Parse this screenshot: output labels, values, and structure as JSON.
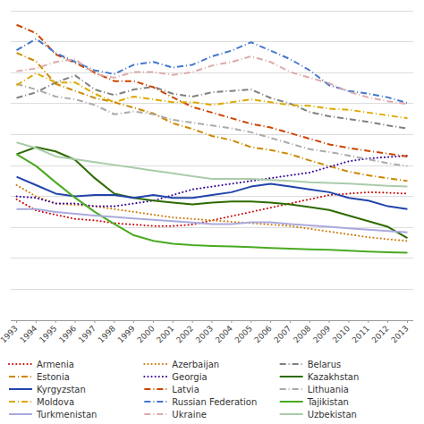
{
  "chart_data": {
    "type": "line",
    "x": [
      1993,
      1994,
      1995,
      1996,
      1997,
      1998,
      1999,
      2000,
      2001,
      2002,
      2003,
      2004,
      2005,
      2006,
      2007,
      2008,
      2009,
      2010,
      2011,
      2012,
      2013
    ],
    "xlim": [
      1992.7,
      2013.3
    ],
    "xticks": [
      1993,
      1994,
      1995,
      1996,
      1997,
      1998,
      1999,
      2000,
      2001,
      2002,
      2003,
      2004,
      2005,
      2006,
      2007,
      2008,
      2009,
      2010,
      2011,
      2012,
      2013
    ],
    "ylim": [
      0,
      1100
    ],
    "yticks": [
      0,
      110,
      220,
      330,
      440,
      550,
      660,
      770,
      880,
      990,
      1100
    ],
    "grid": true,
    "tick_labels": "x",
    "legend": "bottom",
    "series": [
      {
        "name": "Armenia",
        "color": "#cc0000",
        "line_style": "dotted",
        "values": [
          430,
          390,
          375,
          360,
          355,
          345,
          340,
          335,
          335,
          340,
          355,
          370,
          385,
          400,
          415,
          430,
          445,
          450,
          455,
          453,
          450
        ]
      },
      {
        "name": "Azerbaijan",
        "color": "#cc7700",
        "line_style": "dotted",
        "values": [
          480,
          440,
          415,
          410,
          405,
          395,
          385,
          375,
          365,
          360,
          355,
          350,
          345,
          340,
          335,
          325,
          315,
          305,
          295,
          288,
          282
        ]
      },
      {
        "name": "Belarus",
        "color": "#808080",
        "line_style": "dashdot",
        "values": [
          790,
          810,
          845,
          870,
          820,
          800,
          820,
          830,
          805,
          795,
          810,
          815,
          820,
          790,
          770,
          740,
          725,
          715,
          705,
          692,
          682
        ]
      },
      {
        "name": "Estonia",
        "color": "#cc8800",
        "line_style": "dashdot",
        "values": [
          950,
          920,
          840,
          815,
          790,
          775,
          755,
          735,
          700,
          680,
          655,
          640,
          615,
          605,
          590,
          568,
          548,
          528,
          515,
          505,
          495
        ]
      },
      {
        "name": "Georgia",
        "color": "#330099",
        "line_style": "dotted",
        "values": [
          440,
          435,
          415,
          415,
          405,
          405,
          415,
          425,
          445,
          465,
          475,
          485,
          495,
          505,
          515,
          525,
          545,
          565,
          575,
          580,
          585
        ]
      },
      {
        "name": "Kazakhstan",
        "color": "#2d6a00",
        "line_style": "solid",
        "values": [
          590,
          615,
          600,
          570,
          505,
          450,
          435,
          425,
          418,
          412,
          418,
          422,
          422,
          418,
          412,
          402,
          392,
          372,
          352,
          332,
          292
        ]
      },
      {
        "name": "Kyrgyzstan",
        "color": "#2244aa",
        "line_style": "solid",
        "values": [
          510,
          480,
          450,
          440,
          445,
          445,
          435,
          445,
          435,
          435,
          445,
          455,
          475,
          485,
          475,
          465,
          455,
          435,
          425,
          405,
          395
        ]
      },
      {
        "name": "Latvia",
        "color": "#cc4400",
        "line_style": "dashdot",
        "values": [
          1050,
          1020,
          945,
          915,
          880,
          850,
          850,
          828,
          792,
          758,
          738,
          718,
          698,
          685,
          665,
          645,
          625,
          612,
          602,
          592,
          582
        ]
      },
      {
        "name": "Lithuania",
        "color": "#aaaaaa",
        "line_style": "dashdot",
        "values": [
          840,
          820,
          795,
          785,
          765,
          732,
          742,
          732,
          712,
          702,
          692,
          682,
          668,
          648,
          628,
          608,
          598,
          585,
          572,
          558,
          548
        ]
      },
      {
        "name": "Moldova",
        "color": "#ddaa00",
        "line_style": "dashdot",
        "values": [
          835,
          878,
          845,
          845,
          805,
          775,
          795,
          785,
          775,
          775,
          765,
          775,
          785,
          775,
          765,
          762,
          752,
          748,
          738,
          728,
          718
        ]
      },
      {
        "name": "Russian Federation",
        "color": "#4477cc",
        "line_style": "dashdot",
        "values": [
          960,
          1000,
          950,
          918,
          888,
          875,
          908,
          918,
          898,
          908,
          938,
          958,
          988,
          958,
          928,
          888,
          835,
          815,
          805,
          792,
          772
        ]
      },
      {
        "name": "Tajikistan",
        "color": "#4aaa22",
        "line_style": "solid",
        "values": [
          590,
          548,
          490,
          435,
          385,
          342,
          302,
          282,
          272,
          267,
          264,
          262,
          260,
          257,
          254,
          252,
          250,
          247,
          244,
          242,
          240
        ]
      },
      {
        "name": "Turkmenistan",
        "color": "#aaaadd",
        "line_style": "solid",
        "values": [
          395,
          395,
          385,
          378,
          372,
          367,
          362,
          357,
          352,
          347,
          342,
          342,
          348,
          348,
          342,
          337,
          332,
          327,
          322,
          317,
          312
        ]
      },
      {
        "name": "Ukraine",
        "color": "#ddaaaa",
        "line_style": "dashdot",
        "values": [
          885,
          895,
          918,
          928,
          875,
          862,
          882,
          882,
          872,
          882,
          905,
          918,
          938,
          918,
          882,
          862,
          842,
          812,
          792,
          778,
          768
        ]
      },
      {
        "name": "Uzbekistan",
        "color": "#aaccaa",
        "line_style": "solid",
        "values": [
          632,
          612,
          582,
          572,
          562,
          552,
          542,
          532,
          522,
          512,
          502,
          502,
          502,
          498,
          495,
          490,
          488,
          486,
          482,
          478,
          475
        ]
      }
    ]
  }
}
